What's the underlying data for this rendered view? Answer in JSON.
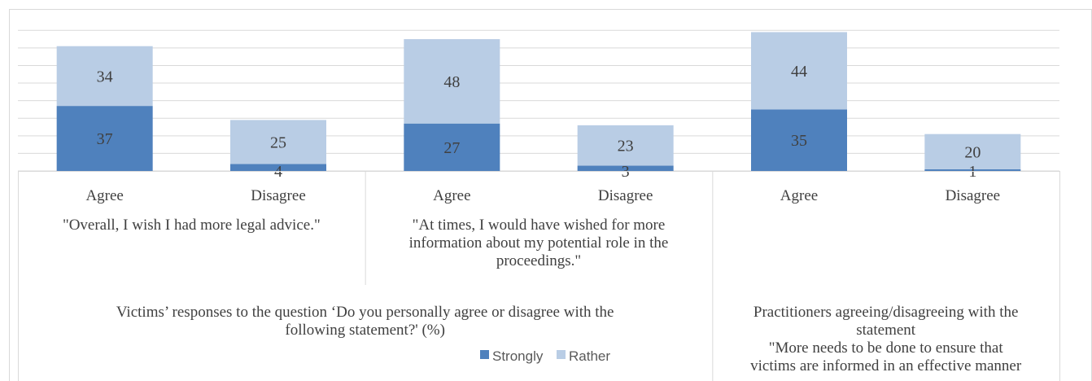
{
  "chart_data": {
    "type": "bar",
    "stacked": true,
    "categories": [
      "Agree",
      "Disagree",
      "Agree",
      "Disagree",
      "Agree",
      "Disagree"
    ],
    "groups": [
      {
        "label_lines": [
          "\"Overall, I wish I had more legal advice.\""
        ]
      },
      {
        "label_lines": [
          "\"At times, I would have wished for more",
          "information about my potential role in the",
          "proceedings.\""
        ]
      },
      {
        "label_lines": []
      }
    ],
    "series": [
      {
        "name": "Strongly",
        "color": "#4f81bd",
        "values": [
          37,
          4,
          27,
          3,
          35,
          1
        ]
      },
      {
        "name": "Rather",
        "color": "#b9cde5",
        "values": [
          34,
          25,
          48,
          23,
          44,
          20
        ]
      }
    ],
    "ylim": [
      0,
      100
    ],
    "grid": true,
    "legend_position": "bottom",
    "sections": [
      {
        "title_lines": [
          "Victims’ responses to the question ‘Do you personally agree or disagree with the",
          "following statement?' (%)"
        ]
      },
      {
        "title_lines": [
          "Practitioners agreeing/disagreeing with the",
          "statement",
          "\"More needs to be done to ensure that",
          "victims are informed in an effective manner"
        ]
      }
    ]
  }
}
